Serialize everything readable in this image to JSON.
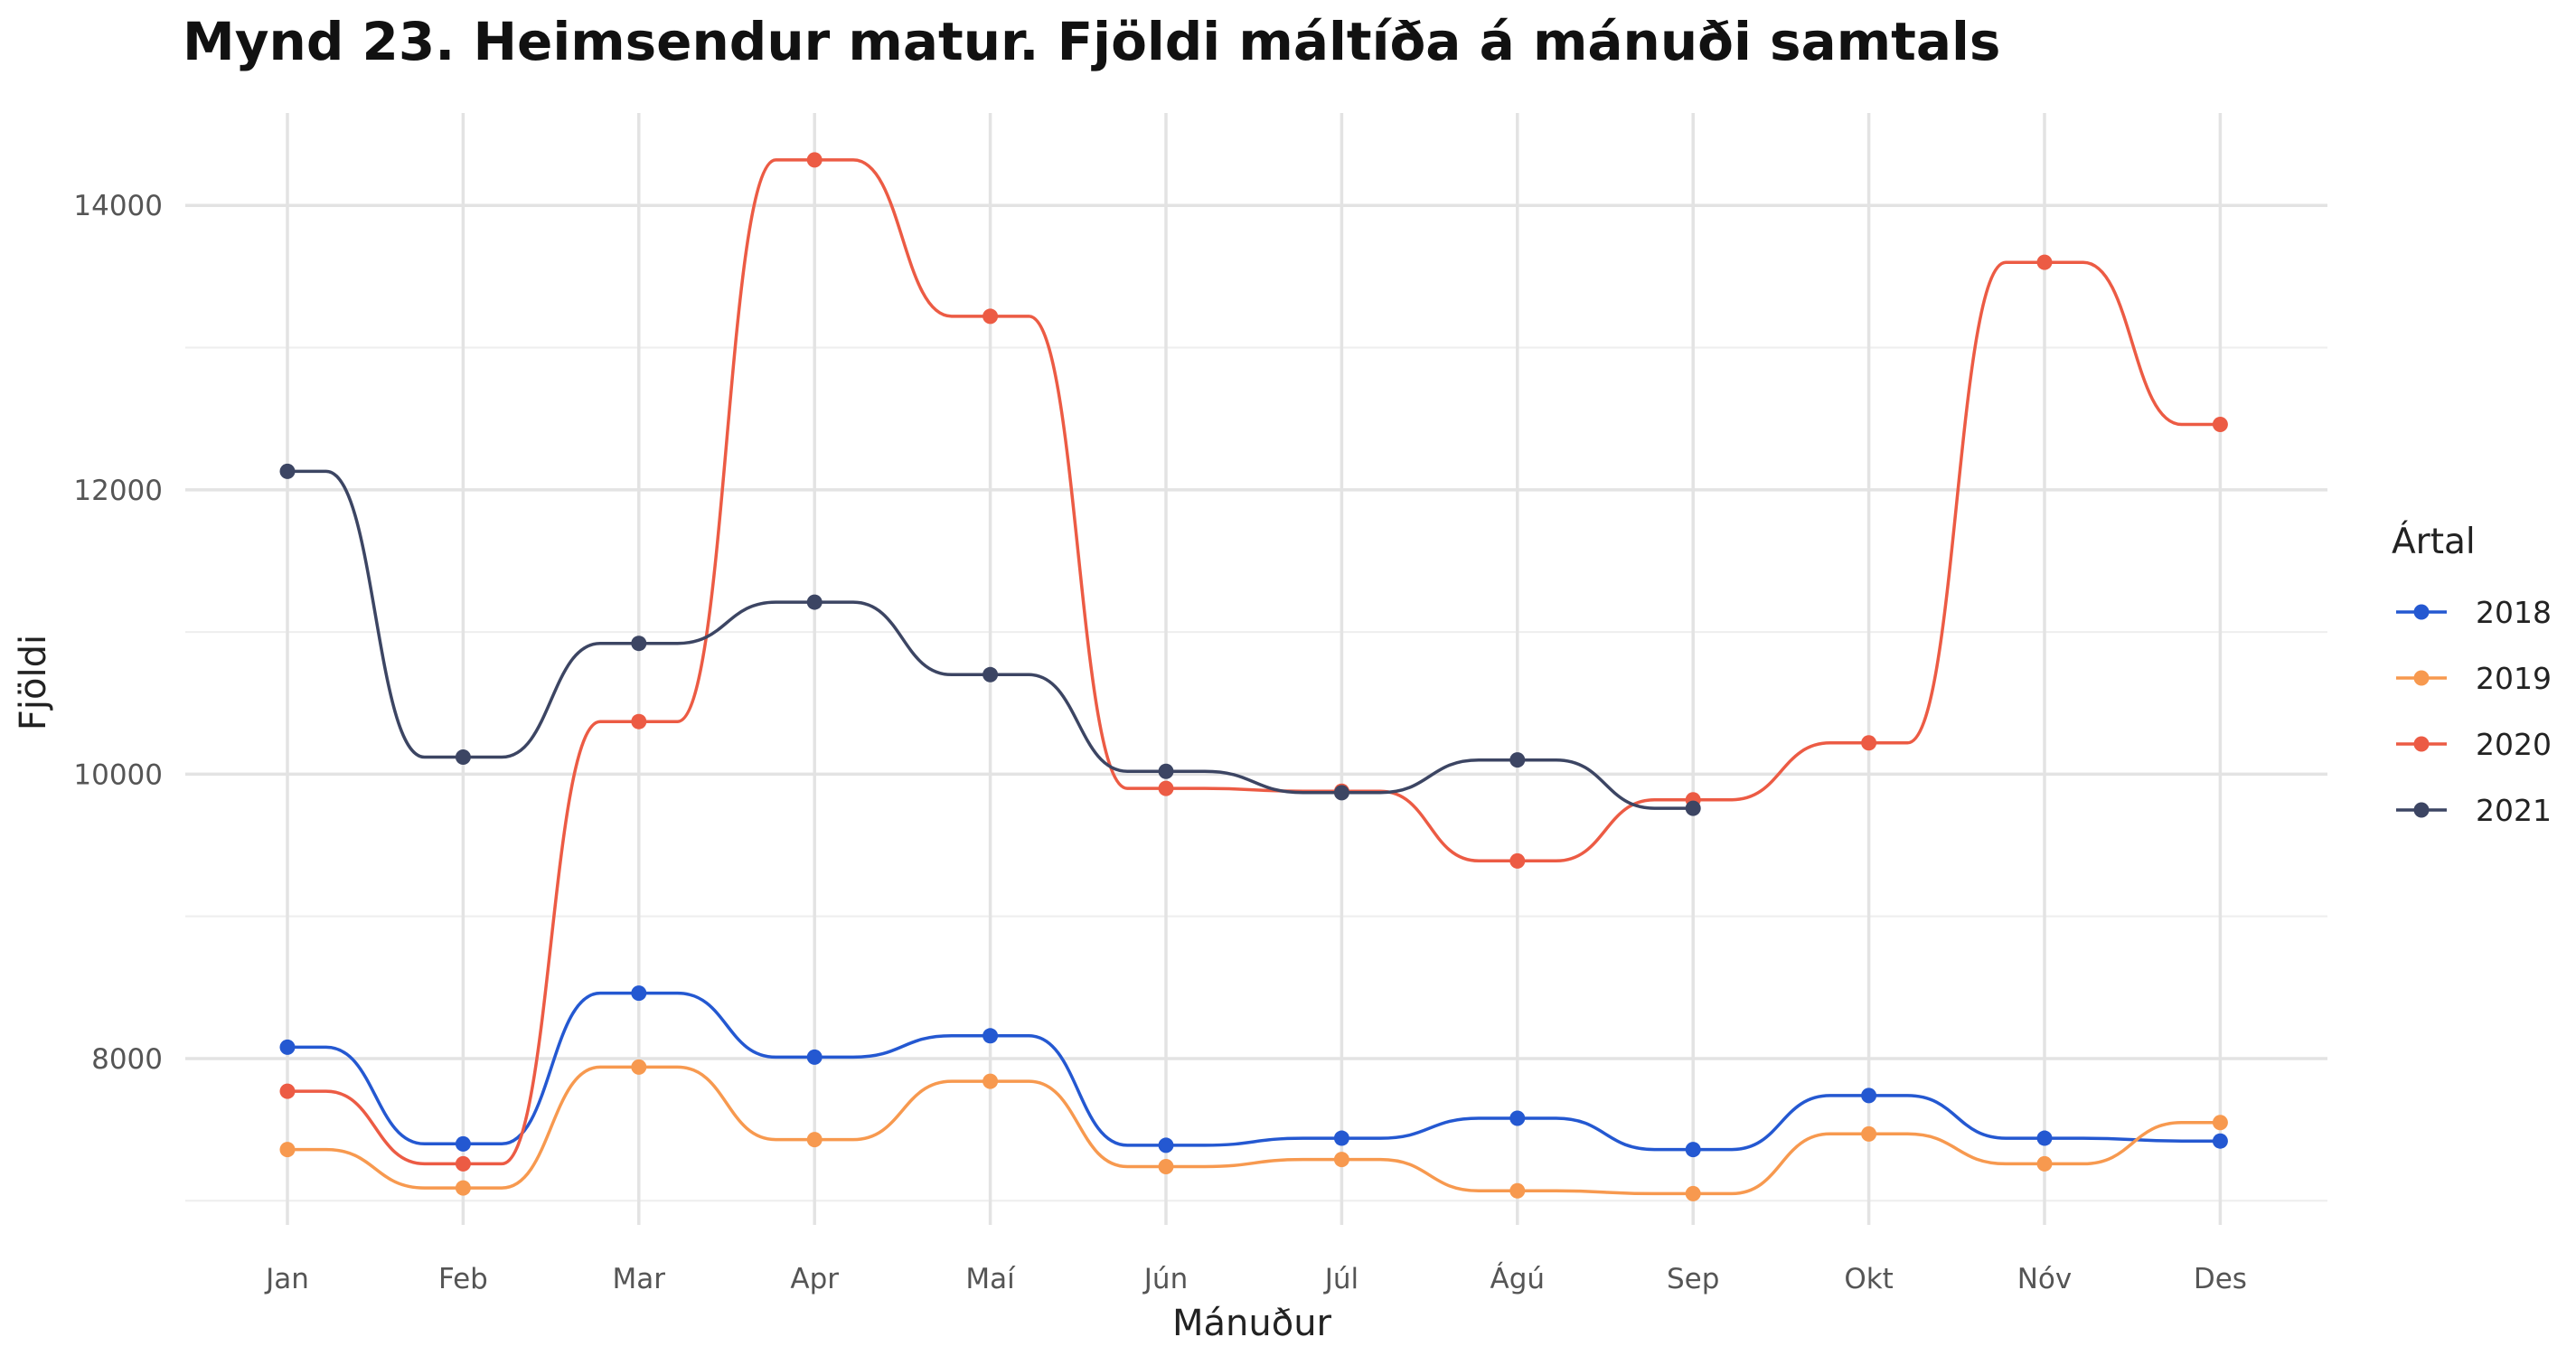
{
  "chart_data": {
    "type": "line",
    "title": "Mynd 23. Heimsendur matur. Fjöldi máltíða á mánuði samtals",
    "xlabel": "Mánuður",
    "ylabel": "Fjöldi",
    "categories": [
      "Jan",
      "Feb",
      "Mar",
      "Apr",
      "Maí",
      "Jún",
      "Júl",
      "Ágú",
      "Sep",
      "Okt",
      "Nóv",
      "Des"
    ],
    "ylim": [
      6830,
      14650
    ],
    "yticks": [
      8000,
      10000,
      12000,
      14000
    ],
    "grid": true,
    "legend": {
      "title": "Ártal",
      "position": "right"
    },
    "series": [
      {
        "name": "2018",
        "color": "#2458d1",
        "values": [
          8080,
          7400,
          8460,
          8010,
          8160,
          7390,
          7440,
          7580,
          7360,
          7740,
          7440,
          7420
        ]
      },
      {
        "name": "2019",
        "color": "#f7994f",
        "values": [
          7360,
          7090,
          7940,
          7430,
          7840,
          7240,
          7290,
          7070,
          7050,
          7470,
          7260,
          7550
        ]
      },
      {
        "name": "2020",
        "color": "#ec5b44",
        "values": [
          7770,
          7260,
          10370,
          14320,
          13220,
          9900,
          9880,
          9390,
          9820,
          10220,
          13600,
          12460
        ]
      },
      {
        "name": "2021",
        "color": "#3c4563",
        "values": [
          12130,
          10120,
          10920,
          11210,
          10700,
          10020,
          9870,
          10100,
          9760,
          null,
          null,
          null
        ]
      }
    ]
  }
}
